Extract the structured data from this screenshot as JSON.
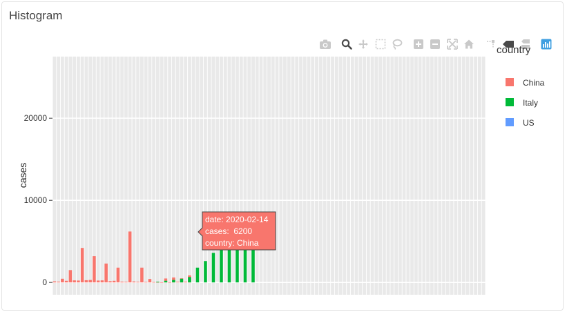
{
  "card": {
    "title": "Histogram"
  },
  "modebar": {
    "buttons": [
      {
        "id": "download",
        "icon": "camera-icon"
      },
      {
        "id": "zoom",
        "icon": "zoom-icon"
      },
      {
        "id": "pan",
        "icon": "pan-icon"
      },
      {
        "id": "box-select",
        "icon": "box-select-icon"
      },
      {
        "id": "lasso-select",
        "icon": "lasso-icon"
      },
      {
        "id": "zoom-in",
        "icon": "zoom-in-icon"
      },
      {
        "id": "zoom-out",
        "icon": "zoom-out-icon"
      },
      {
        "id": "autoscale",
        "icon": "autoscale-icon"
      },
      {
        "id": "reset-axes",
        "icon": "home-icon"
      },
      {
        "id": "spike-lines",
        "icon": "spike-icon"
      },
      {
        "id": "hover-closest",
        "icon": "hover-closest-icon"
      },
      {
        "id": "hover-compare",
        "icon": "hover-compare-icon"
      },
      {
        "id": "plotly-logo",
        "icon": "plotly-logo-icon"
      }
    ],
    "colors": {
      "icon": "#c9c9c9",
      "active": "#4a4a4a",
      "logo": "#3f9fe1"
    }
  },
  "chart_data": {
    "type": "bar",
    "ylabel": "cases",
    "ylim": [
      -1500,
      27500
    ],
    "yticks": [
      0,
      10000,
      20000
    ],
    "ytick_labels": [
      "0",
      "10000",
      "20000"
    ],
    "grid": true,
    "legend": {
      "title": "country",
      "placement": "right"
    },
    "series": [
      {
        "name": "China",
        "color": "#f8766d",
        "values": [
          130,
          100,
          450,
          200,
          1500,
          250,
          230,
          4200,
          270,
          300,
          3200,
          230,
          250,
          2300,
          150,
          200,
          1800,
          100,
          80,
          6200,
          120,
          80,
          1800,
          60,
          420,
          50,
          40,
          30,
          480,
          30,
          600,
          80,
          500,
          90,
          850,
          0,
          0,
          0,
          0,
          0,
          0,
          0,
          0,
          0,
          0,
          0,
          0,
          0,
          0,
          0,
          0,
          0,
          0,
          0,
          0,
          0,
          0,
          0,
          0,
          0,
          0,
          0,
          0,
          0,
          0,
          0,
          0,
          0,
          0,
          0,
          0,
          0,
          0,
          0,
          0,
          0,
          0,
          0,
          0,
          0,
          0,
          0,
          0,
          0,
          0,
          0,
          0,
          0,
          0,
          0,
          0,
          0,
          0,
          0,
          0,
          0,
          0,
          0,
          0,
          0,
          0,
          0,
          0,
          0,
          0,
          0,
          0,
          0,
          0
        ]
      },
      {
        "name": "Italy",
        "color": "#00ba38",
        "values": [
          0,
          0,
          0,
          0,
          0,
          0,
          0,
          0,
          0,
          0,
          0,
          0,
          0,
          0,
          0,
          0,
          0,
          0,
          0,
          0,
          0,
          0,
          0,
          0,
          0,
          0,
          80,
          0,
          200,
          0,
          300,
          0,
          450,
          0,
          650,
          0,
          1800,
          0,
          2600,
          0,
          3600,
          0,
          4200,
          0,
          6500,
          0,
          5200,
          0,
          5900,
          0,
          4000,
          0,
          0,
          0,
          0,
          0,
          0,
          0,
          0,
          0,
          0,
          0,
          0,
          0,
          0,
          0,
          0,
          0,
          0,
          0,
          0,
          0,
          0,
          0,
          0,
          0,
          0,
          0,
          0,
          0,
          0,
          0,
          0,
          0,
          0,
          0,
          0,
          0,
          0,
          0,
          0,
          0,
          0,
          0,
          0,
          0,
          0,
          0,
          0,
          0,
          0,
          0,
          0,
          0,
          0,
          0,
          0,
          0,
          0
        ]
      },
      {
        "name": "US",
        "color": "#619cff",
        "values": [
          0,
          0,
          0,
          0,
          0,
          0,
          0,
          0,
          0,
          0,
          0,
          0,
          0,
          0,
          0,
          0,
          0,
          0,
          0,
          0,
          0,
          0,
          0,
          0,
          0,
          0,
          0,
          0,
          0,
          0,
          0,
          0,
          0,
          0,
          0,
          0,
          0,
          0,
          0,
          0,
          0,
          0,
          0,
          0,
          0,
          0,
          0,
          0,
          0,
          0,
          0,
          0,
          0,
          0,
          0,
          0,
          0,
          0,
          0,
          0,
          0,
          0,
          0,
          0,
          0,
          0,
          0,
          0,
          0,
          0,
          0,
          0,
          0,
          0,
          0,
          0,
          0,
          0,
          0,
          0,
          0,
          0,
          0,
          0,
          0,
          0,
          0,
          0,
          0,
          0,
          0,
          0,
          0,
          0,
          0,
          0,
          0,
          0,
          0,
          0,
          0,
          0,
          0,
          0,
          0,
          0,
          0,
          0,
          0
        ]
      }
    ],
    "hover": {
      "series": "China",
      "lines": [
        "date: 2020-02-14",
        "cases:  6200",
        "country: China"
      ]
    }
  }
}
